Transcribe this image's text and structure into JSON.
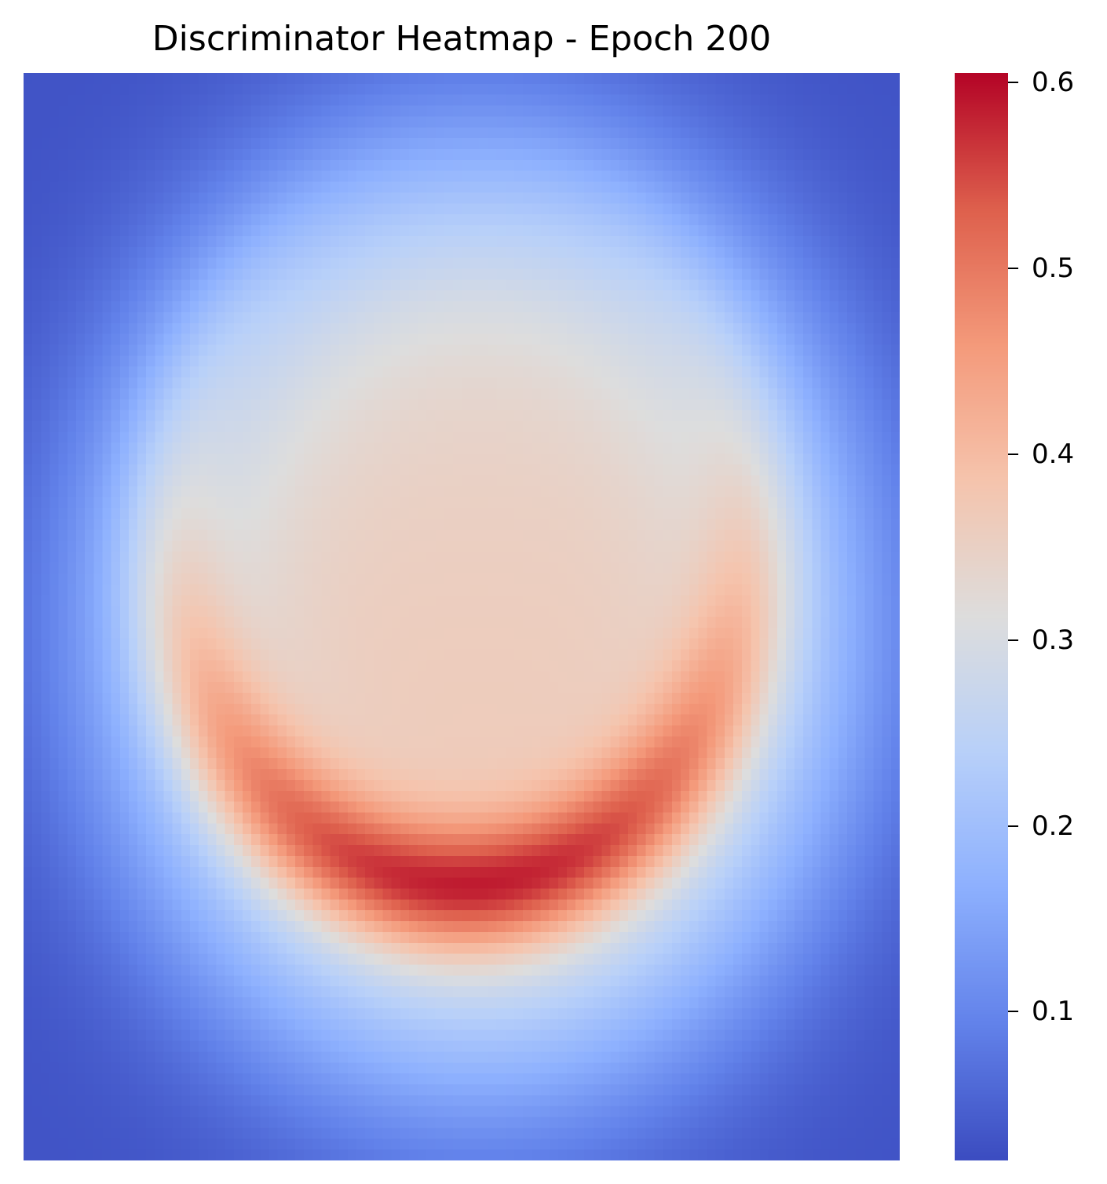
{
  "chart_data": {
    "type": "heatmap",
    "title": "Discriminator Heatmap - Epoch 200",
    "xlabel": "",
    "ylabel": "",
    "colormap": "coolwarm",
    "grid_size": [
      100,
      100
    ],
    "value_range": [
      0.02,
      0.605
    ],
    "colorbar": {
      "ticks": [
        0.6,
        0.5,
        0.4,
        0.3,
        0.2,
        0.1
      ],
      "tick_labels": [
        "0.6",
        "0.5",
        "0.4",
        "0.3",
        "0.2",
        "0.1"
      ]
    },
    "field": {
      "description_of_shape": "plateau disk ~0.37 with a crescent ridge peaking ~0.60 along the lower edge, falling to ~0.03 at corners",
      "plateau_center": [
        0.52,
        0.5
      ],
      "plateau_radius_x": 0.46,
      "plateau_radius_y": 0.46,
      "ridge_center": [
        0.5,
        0.42
      ],
      "ridge_radius": 0.33,
      "ridge_width": 0.06,
      "ridge_peak_angle_deg": 90,
      "peak_value": 0.605,
      "plateau_value": 0.35,
      "corner_value": 0.03
    }
  }
}
